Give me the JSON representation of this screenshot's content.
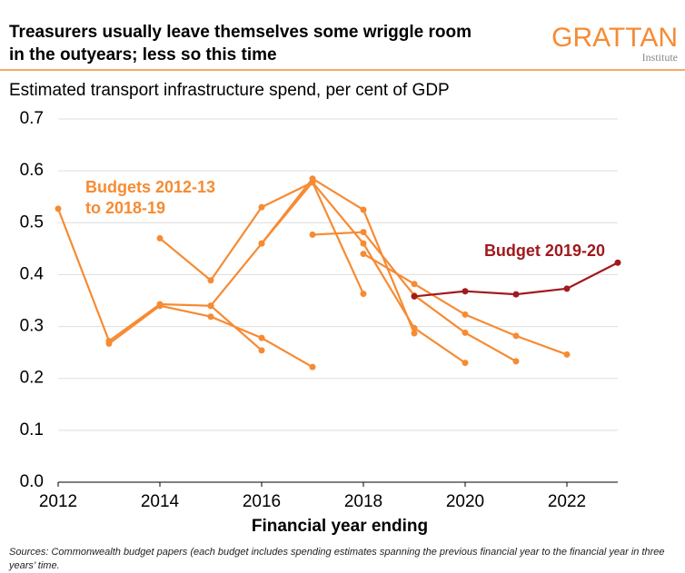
{
  "chart_data": {
    "type": "line",
    "title": [
      "Treasurers usually leave themselves some wriggle room",
      "in the outyears; less so this time"
    ],
    "logo": {
      "name": "GRATTAN",
      "sub": "Institute"
    },
    "subtitle": "Estimated transport infrastructure spend, per cent of GDP",
    "x_label": "Financial year ending",
    "source": "Sources: Commonwealth budget papers (each budget includes spending estimates spanning the previous financial year to the financial year in three years’ time.",
    "x": [
      2012,
      2013,
      2014,
      2015,
      2016,
      2017,
      2018,
      2019,
      2020,
      2021,
      2022,
      2023
    ],
    "xlim": [
      2012,
      2023
    ],
    "xticks": [
      2012,
      2014,
      2016,
      2018,
      2020,
      2022
    ],
    "ylim": [
      0,
      0.7
    ],
    "yticks": [
      {
        "value": 0,
        "label": "0.0"
      },
      0.1,
      0.2,
      0.3,
      0.4,
      0.5,
      0.6,
      0.7
    ],
    "grid": true,
    "series": [
      {
        "color": "#f68b33",
        "values": [
          0.527,
          0.272,
          0.343,
          0.34,
          0.254,
          null,
          null,
          null,
          null,
          null,
          null,
          null
        ]
      },
      {
        "color": "#f68b33",
        "values": [
          null,
          0.267,
          0.34,
          0.319,
          0.278,
          0.222,
          null,
          null,
          null,
          null,
          null,
          null
        ]
      },
      {
        "color": "#f68b33",
        "values": [
          null,
          null,
          0.47,
          0.389,
          0.53,
          0.578,
          0.363,
          null,
          null,
          null,
          null,
          null
        ]
      },
      {
        "color": "#f68b33",
        "values": [
          null,
          null,
          null,
          0.34,
          0.46,
          0.585,
          0.525,
          0.287,
          null,
          null,
          null,
          null
        ]
      },
      {
        "color": "#f68b33",
        "values": [
          null,
          null,
          null,
          null,
          0.46,
          0.578,
          0.46,
          0.297,
          0.23,
          null,
          null,
          null
        ]
      },
      {
        "color": "#f68b33",
        "values": [
          null,
          null,
          null,
          null,
          null,
          0.477,
          0.482,
          0.36,
          0.288,
          0.233,
          null,
          null
        ]
      },
      {
        "color": "#f68b33",
        "values": [
          null,
          null,
          null,
          null,
          null,
          null,
          0.44,
          0.382,
          0.323,
          0.282,
          0.246,
          null
        ]
      },
      {
        "name": "Budget 2019-20",
        "color": "#a01a1f",
        "values": [
          null,
          null,
          null,
          null,
          null,
          null,
          null,
          0.358,
          0.368,
          0.362,
          0.373,
          0.423
        ]
      }
    ],
    "annotation": {
      "lines": [
        "Budgets 2012-13",
        "to 2018-19"
      ],
      "color": "#f68b33"
    }
  }
}
